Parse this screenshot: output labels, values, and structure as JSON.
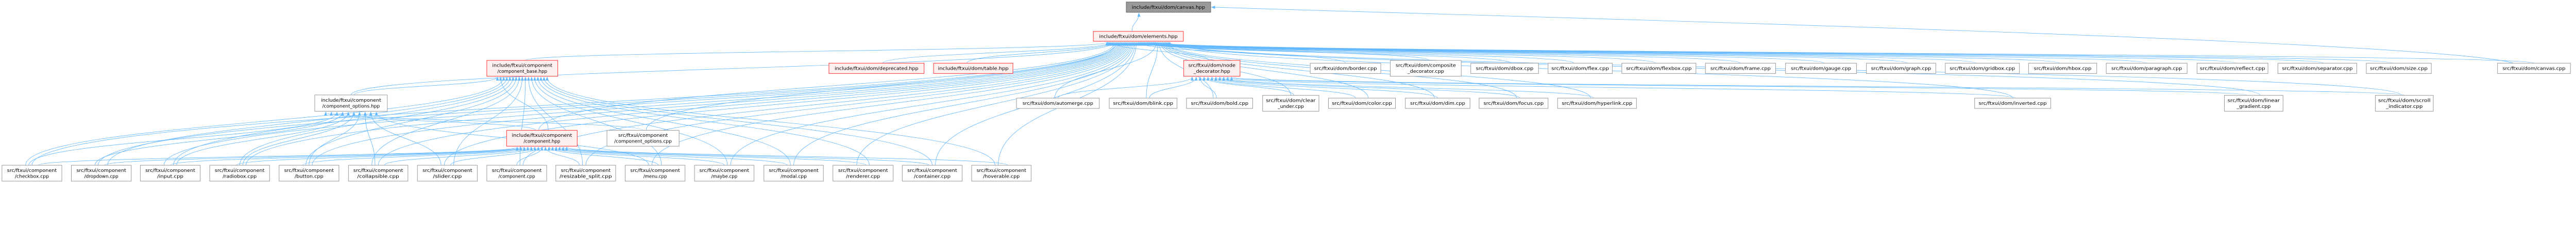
{
  "colors": {
    "edge": "#63b8ff",
    "root_fill": "#999999",
    "root_border": "#666666",
    "highlight_fill": "#fff0f0",
    "highlight_border": "#ff3333",
    "normal_fill": "#ffffff",
    "normal_border": "#999999"
  },
  "nodes": [
    {
      "id": "canvas_hpp",
      "kind": "root",
      "lines": [
        "include/ftxui/dom/canvas.hpp"
      ]
    },
    {
      "id": "elements_hpp",
      "kind": "highlight",
      "lines": [
        "include/ftxui/dom/elements.hpp"
      ]
    },
    {
      "id": "component_base_hpp",
      "kind": "highlight",
      "lines": [
        "include/ftxui/component",
        "/component_base.hpp"
      ]
    },
    {
      "id": "deprecated_hpp",
      "kind": "highlight",
      "lines": [
        "include/ftxui/dom/deprecated.hpp"
      ]
    },
    {
      "id": "table_hpp",
      "kind": "highlight",
      "lines": [
        "include/ftxui/dom/table.hpp"
      ]
    },
    {
      "id": "node_decorator_hpp",
      "kind": "highlight",
      "lines": [
        "src/ftxui/dom/node",
        "_decorator.hpp"
      ]
    },
    {
      "id": "component_options_hpp",
      "kind": "normal",
      "lines": [
        "include/ftxui/component",
        "/component_options.hpp"
      ]
    },
    {
      "id": "component_hpp",
      "kind": "highlight",
      "lines": [
        "include/ftxui/component",
        "/component.hpp"
      ]
    },
    {
      "id": "component_options_cpp",
      "kind": "normal",
      "lines": [
        "src/ftxui/component",
        "/component_options.cpp"
      ]
    },
    {
      "id": "checkbox_cpp",
      "kind": "normal",
      "lines": [
        "src/ftxui/component",
        "/checkbox.cpp"
      ]
    },
    {
      "id": "dropdown_cpp",
      "kind": "normal",
      "lines": [
        "src/ftxui/component",
        "/dropdown.cpp"
      ]
    },
    {
      "id": "input_cpp",
      "kind": "normal",
      "lines": [
        "src/ftxui/component",
        "/input.cpp"
      ]
    },
    {
      "id": "radiobox_cpp",
      "kind": "normal",
      "lines": [
        "src/ftxui/component",
        "/radiobox.cpp"
      ]
    },
    {
      "id": "button_cpp",
      "kind": "normal",
      "lines": [
        "src/ftxui/component",
        "/button.cpp"
      ]
    },
    {
      "id": "collapsible_cpp",
      "kind": "normal",
      "lines": [
        "src/ftxui/component",
        "/collapsible.cpp"
      ]
    },
    {
      "id": "slider_cpp",
      "kind": "normal",
      "lines": [
        "src/ftxui/component",
        "/slider.cpp"
      ]
    },
    {
      "id": "component_cpp",
      "kind": "normal",
      "lines": [
        "src/ftxui/component",
        "/component.cpp"
      ]
    },
    {
      "id": "resizable_split_cpp",
      "kind": "normal",
      "lines": [
        "src/ftxui/component",
        "/resizable_split.cpp"
      ]
    },
    {
      "id": "menu_cpp",
      "kind": "normal",
      "lines": [
        "src/ftxui/component",
        "/menu.cpp"
      ]
    },
    {
      "id": "maybe_cpp",
      "kind": "normal",
      "lines": [
        "src/ftxui/component",
        "/maybe.cpp"
      ]
    },
    {
      "id": "modal_cpp",
      "kind": "normal",
      "lines": [
        "src/ftxui/component",
        "/modal.cpp"
      ]
    },
    {
      "id": "renderer_cpp",
      "kind": "normal",
      "lines": [
        "src/ftxui/component",
        "/renderer.cpp"
      ]
    },
    {
      "id": "container_cpp",
      "kind": "normal",
      "lines": [
        "src/ftxui/component",
        "/container.cpp"
      ]
    },
    {
      "id": "hoverable_cpp",
      "kind": "normal",
      "lines": [
        "src/ftxui/component",
        "/hoverable.cpp"
      ]
    },
    {
      "id": "border_cpp",
      "kind": "normal",
      "lines": [
        "src/ftxui/dom/border.cpp"
      ]
    },
    {
      "id": "composite_decorator_cpp",
      "kind": "normal",
      "lines": [
        "src/ftxui/dom/composite",
        "_decorator.cpp"
      ]
    },
    {
      "id": "dbox_cpp",
      "kind": "normal",
      "lines": [
        "src/ftxui/dom/dbox.cpp"
      ]
    },
    {
      "id": "flex_cpp",
      "kind": "normal",
      "lines": [
        "src/ftxui/dom/flex.cpp"
      ]
    },
    {
      "id": "flexbox_cpp",
      "kind": "normal",
      "lines": [
        "src/ftxui/dom/flexbox.cpp"
      ]
    },
    {
      "id": "frame_cpp",
      "kind": "normal",
      "lines": [
        "src/ftxui/dom/frame.cpp"
      ]
    },
    {
      "id": "gauge_cpp",
      "kind": "normal",
      "lines": [
        "src/ftxui/dom/gauge.cpp"
      ]
    },
    {
      "id": "graph_cpp",
      "kind": "normal",
      "lines": [
        "src/ftxui/dom/graph.cpp"
      ]
    },
    {
      "id": "gridbox_cpp",
      "kind": "normal",
      "lines": [
        "src/ftxui/dom/gridbox.cpp"
      ]
    },
    {
      "id": "hbox_cpp",
      "kind": "normal",
      "lines": [
        "src/ftxui/dom/hbox.cpp"
      ]
    },
    {
      "id": "paragraph_cpp",
      "kind": "normal",
      "lines": [
        "src/ftxui/dom/paragraph.cpp"
      ]
    },
    {
      "id": "reflect_cpp",
      "kind": "normal",
      "lines": [
        "src/ftxui/dom/reflect.cpp"
      ]
    },
    {
      "id": "separator_cpp",
      "kind": "normal",
      "lines": [
        "src/ftxui/dom/separator.cpp"
      ]
    },
    {
      "id": "size_cpp",
      "kind": "normal",
      "lines": [
        "src/ftxui/dom/size.cpp"
      ]
    },
    {
      "id": "canvas_cpp",
      "kind": "normal",
      "lines": [
        "src/ftxui/dom/canvas.cpp"
      ]
    },
    {
      "id": "automerge_cpp",
      "kind": "normal",
      "lines": [
        "src/ftxui/dom/automerge.cpp"
      ]
    },
    {
      "id": "blink_cpp",
      "kind": "normal",
      "lines": [
        "src/ftxui/dom/blink.cpp"
      ]
    },
    {
      "id": "bold_cpp",
      "kind": "normal",
      "lines": [
        "src/ftxui/dom/bold.cpp"
      ]
    },
    {
      "id": "clear_under_cpp",
      "kind": "normal",
      "lines": [
        "src/ftxui/dom/clear",
        "_under.cpp"
      ]
    },
    {
      "id": "color_cpp",
      "kind": "normal",
      "lines": [
        "src/ftxui/dom/color.cpp"
      ]
    },
    {
      "id": "dim_cpp",
      "kind": "normal",
      "lines": [
        "src/ftxui/dom/dim.cpp"
      ]
    },
    {
      "id": "focus_cpp",
      "kind": "normal",
      "lines": [
        "src/ftxui/dom/focus.cpp"
      ]
    },
    {
      "id": "hyperlink_cpp",
      "kind": "normal",
      "lines": [
        "src/ftxui/dom/hyperlink.cpp"
      ]
    },
    {
      "id": "inverted_cpp",
      "kind": "normal",
      "lines": [
        "src/ftxui/dom/inverted.cpp"
      ]
    },
    {
      "id": "linear_gradient_cpp",
      "kind": "normal",
      "lines": [
        "src/ftxui/dom/linear",
        "_gradient.cpp"
      ]
    },
    {
      "id": "scroll_indicator_cpp",
      "kind": "normal",
      "lines": [
        "src/ftxui/dom/scroll",
        "_indicator.cpp"
      ]
    }
  ],
  "edges": [
    [
      "elements_hpp",
      "canvas_hpp"
    ],
    [
      "canvas_cpp",
      "canvas_hpp"
    ],
    [
      "canvas_cpp",
      "elements_hpp"
    ],
    [
      "component_base_hpp",
      "elements_hpp"
    ],
    [
      "deprecated_hpp",
      "elements_hpp"
    ],
    [
      "table_hpp",
      "elements_hpp"
    ],
    [
      "node_decorator_hpp",
      "elements_hpp"
    ],
    [
      "component_options_hpp",
      "elements_hpp"
    ],
    [
      "component_options_hpp",
      "component_base_hpp"
    ],
    [
      "component_hpp",
      "component_base_hpp"
    ],
    [
      "component_hpp",
      "component_options_hpp"
    ],
    [
      "component_hpp",
      "elements_hpp"
    ],
    [
      "component_options_cpp",
      "component_options_hpp"
    ],
    [
      "component_options_cpp",
      "elements_hpp"
    ],
    [
      "checkbox_cpp",
      "component_hpp"
    ],
    [
      "checkbox_cpp",
      "component_base_hpp"
    ],
    [
      "checkbox_cpp",
      "component_options_hpp"
    ],
    [
      "checkbox_cpp",
      "elements_hpp"
    ],
    [
      "dropdown_cpp",
      "component_hpp"
    ],
    [
      "dropdown_cpp",
      "component_base_hpp"
    ],
    [
      "dropdown_cpp",
      "component_options_hpp"
    ],
    [
      "dropdown_cpp",
      "elements_hpp"
    ],
    [
      "input_cpp",
      "component_hpp"
    ],
    [
      "input_cpp",
      "component_base_hpp"
    ],
    [
      "input_cpp",
      "component_options_hpp"
    ],
    [
      "input_cpp",
      "elements_hpp"
    ],
    [
      "radiobox_cpp",
      "component_hpp"
    ],
    [
      "radiobox_cpp",
      "component_base_hpp"
    ],
    [
      "radiobox_cpp",
      "component_options_hpp"
    ],
    [
      "radiobox_cpp",
      "elements_hpp"
    ],
    [
      "button_cpp",
      "component_hpp"
    ],
    [
      "button_cpp",
      "component_base_hpp"
    ],
    [
      "button_cpp",
      "component_options_hpp"
    ],
    [
      "button_cpp",
      "elements_hpp"
    ],
    [
      "collapsible_cpp",
      "component_hpp"
    ],
    [
      "collapsible_cpp",
      "component_base_hpp"
    ],
    [
      "collapsible_cpp",
      "component_options_hpp"
    ],
    [
      "collapsible_cpp",
      "elements_hpp"
    ],
    [
      "slider_cpp",
      "component_hpp"
    ],
    [
      "slider_cpp",
      "component_base_hpp"
    ],
    [
      "slider_cpp",
      "component_options_hpp"
    ],
    [
      "slider_cpp",
      "elements_hpp"
    ],
    [
      "component_cpp",
      "component_hpp"
    ],
    [
      "component_cpp",
      "component_base_hpp"
    ],
    [
      "component_cpp",
      "elements_hpp"
    ],
    [
      "resizable_split_cpp",
      "component_hpp"
    ],
    [
      "resizable_split_cpp",
      "component_base_hpp"
    ],
    [
      "resizable_split_cpp",
      "elements_hpp"
    ],
    [
      "menu_cpp",
      "component_hpp"
    ],
    [
      "menu_cpp",
      "component_base_hpp"
    ],
    [
      "menu_cpp",
      "component_options_hpp"
    ],
    [
      "menu_cpp",
      "elements_hpp"
    ],
    [
      "maybe_cpp",
      "component_hpp"
    ],
    [
      "maybe_cpp",
      "component_base_hpp"
    ],
    [
      "maybe_cpp",
      "elements_hpp"
    ],
    [
      "modal_cpp",
      "component_hpp"
    ],
    [
      "modal_cpp",
      "component_base_hpp"
    ],
    [
      "modal_cpp",
      "elements_hpp"
    ],
    [
      "renderer_cpp",
      "component_hpp"
    ],
    [
      "renderer_cpp",
      "component_base_hpp"
    ],
    [
      "renderer_cpp",
      "elements_hpp"
    ],
    [
      "container_cpp",
      "component_hpp"
    ],
    [
      "container_cpp",
      "component_base_hpp"
    ],
    [
      "container_cpp",
      "elements_hpp"
    ],
    [
      "hoverable_cpp",
      "component_hpp"
    ],
    [
      "hoverable_cpp",
      "component_base_hpp"
    ],
    [
      "hoverable_cpp",
      "elements_hpp"
    ],
    [
      "border_cpp",
      "elements_hpp"
    ],
    [
      "composite_decorator_cpp",
      "elements_hpp"
    ],
    [
      "dbox_cpp",
      "elements_hpp"
    ],
    [
      "flex_cpp",
      "elements_hpp"
    ],
    [
      "flexbox_cpp",
      "elements_hpp"
    ],
    [
      "frame_cpp",
      "elements_hpp"
    ],
    [
      "gauge_cpp",
      "elements_hpp"
    ],
    [
      "graph_cpp",
      "elements_hpp"
    ],
    [
      "gridbox_cpp",
      "elements_hpp"
    ],
    [
      "hbox_cpp",
      "elements_hpp"
    ],
    [
      "paragraph_cpp",
      "elements_hpp"
    ],
    [
      "reflect_cpp",
      "elements_hpp"
    ],
    [
      "separator_cpp",
      "elements_hpp"
    ],
    [
      "size_cpp",
      "elements_hpp"
    ],
    [
      "automerge_cpp",
      "elements_hpp"
    ],
    [
      "automerge_cpp",
      "node_decorator_hpp"
    ],
    [
      "blink_cpp",
      "elements_hpp"
    ],
    [
      "blink_cpp",
      "node_decorator_hpp"
    ],
    [
      "bold_cpp",
      "elements_hpp"
    ],
    [
      "bold_cpp",
      "node_decorator_hpp"
    ],
    [
      "clear_under_cpp",
      "elements_hpp"
    ],
    [
      "clear_under_cpp",
      "node_decorator_hpp"
    ],
    [
      "color_cpp",
      "elements_hpp"
    ],
    [
      "color_cpp",
      "node_decorator_hpp"
    ],
    [
      "dim_cpp",
      "elements_hpp"
    ],
    [
      "dim_cpp",
      "node_decorator_hpp"
    ],
    [
      "focus_cpp",
      "elements_hpp"
    ],
    [
      "focus_cpp",
      "node_decorator_hpp"
    ],
    [
      "hyperlink_cpp",
      "elements_hpp"
    ],
    [
      "hyperlink_cpp",
      "node_decorator_hpp"
    ],
    [
      "inverted_cpp",
      "elements_hpp"
    ],
    [
      "inverted_cpp",
      "node_decorator_hpp"
    ],
    [
      "linear_gradient_cpp",
      "elements_hpp"
    ],
    [
      "linear_gradient_cpp",
      "node_decorator_hpp"
    ],
    [
      "scroll_indicator_cpp",
      "elements_hpp"
    ],
    [
      "scroll_indicator_cpp",
      "node_decorator_hpp"
    ]
  ]
}
